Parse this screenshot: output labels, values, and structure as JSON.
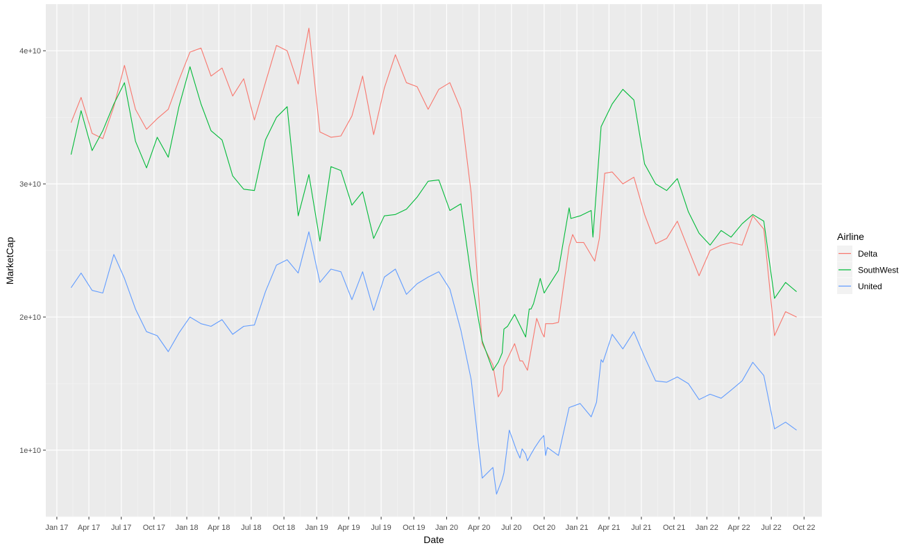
{
  "chart_data": {
    "type": "line",
    "title": "",
    "xlabel": "Date",
    "ylabel": "MarketCap",
    "legend_title": "Airline",
    "legend_position": "right",
    "grid": true,
    "xlim": [
      "2016-12-01",
      "2022-11-20"
    ],
    "ylim": [
      5000000000,
      43500000000
    ],
    "x_ticks": [
      {
        "date": "2017-01-01",
        "label": "Jan 17"
      },
      {
        "date": "2017-04-01",
        "label": "Apr 17"
      },
      {
        "date": "2017-07-01",
        "label": "Jul 17"
      },
      {
        "date": "2017-10-01",
        "label": "Oct 17"
      },
      {
        "date": "2018-01-01",
        "label": "Jan 18"
      },
      {
        "date": "2018-04-01",
        "label": "Apr 18"
      },
      {
        "date": "2018-07-01",
        "label": "Jul 18"
      },
      {
        "date": "2018-10-01",
        "label": "Oct 18"
      },
      {
        "date": "2019-01-01",
        "label": "Jan 19"
      },
      {
        "date": "2019-04-01",
        "label": "Apr 19"
      },
      {
        "date": "2019-07-01",
        "label": "Jul 19"
      },
      {
        "date": "2019-10-01",
        "label": "Oct 19"
      },
      {
        "date": "2020-01-01",
        "label": "Jan 20"
      },
      {
        "date": "2020-04-01",
        "label": "Apr 20"
      },
      {
        "date": "2020-07-01",
        "label": "Jul 20"
      },
      {
        "date": "2020-10-01",
        "label": "Oct 20"
      },
      {
        "date": "2021-01-01",
        "label": "Jan 21"
      },
      {
        "date": "2021-04-01",
        "label": "Apr 21"
      },
      {
        "date": "2021-07-01",
        "label": "Jul 21"
      },
      {
        "date": "2021-10-01",
        "label": "Oct 21"
      },
      {
        "date": "2022-01-01",
        "label": "Jan 22"
      },
      {
        "date": "2022-04-01",
        "label": "Apr 22"
      },
      {
        "date": "2022-07-01",
        "label": "Jul 22"
      },
      {
        "date": "2022-10-01",
        "label": "Oct 22"
      }
    ],
    "y_ticks": [
      {
        "value": 10000000000,
        "label": "1e+10"
      },
      {
        "value": 20000000000,
        "label": "2e+10"
      },
      {
        "value": 30000000000,
        "label": "3e+10"
      },
      {
        "value": 40000000000,
        "label": "4e+10"
      }
    ],
    "series": [
      {
        "name": "Delta",
        "color": "#F8766D",
        "points": [
          [
            "2017-02-10",
            34.6
          ],
          [
            "2017-03-10",
            36.5
          ],
          [
            "2017-04-10",
            33.8
          ],
          [
            "2017-05-10",
            33.4
          ],
          [
            "2017-06-10",
            35.8
          ],
          [
            "2017-07-10",
            38.9
          ],
          [
            "2017-08-10",
            35.6
          ],
          [
            "2017-09-10",
            34.1
          ],
          [
            "2017-10-10",
            34.9
          ],
          [
            "2017-11-10",
            35.6
          ],
          [
            "2017-12-10",
            37.8
          ],
          [
            "2018-01-10",
            39.9
          ],
          [
            "2018-02-10",
            40.2
          ],
          [
            "2018-03-10",
            38.1
          ],
          [
            "2018-04-10",
            38.7
          ],
          [
            "2018-05-10",
            36.6
          ],
          [
            "2018-06-10",
            37.9
          ],
          [
            "2018-07-10",
            34.8
          ],
          [
            "2018-08-10",
            37.6
          ],
          [
            "2018-09-10",
            40.4
          ],
          [
            "2018-10-10",
            40.0
          ],
          [
            "2018-11-10",
            37.5
          ],
          [
            "2018-12-10",
            41.7
          ],
          [
            "2019-01-10",
            33.9
          ],
          [
            "2019-02-10",
            33.5
          ],
          [
            "2019-03-10",
            33.6
          ],
          [
            "2019-04-10",
            35.1
          ],
          [
            "2019-05-10",
            38.1
          ],
          [
            "2019-06-10",
            33.7
          ],
          [
            "2019-07-10",
            37.2
          ],
          [
            "2019-08-10",
            39.7
          ],
          [
            "2019-09-10",
            37.6
          ],
          [
            "2019-10-10",
            37.3
          ],
          [
            "2019-11-10",
            35.6
          ],
          [
            "2019-12-10",
            37.1
          ],
          [
            "2020-01-10",
            37.6
          ],
          [
            "2020-02-10",
            35.6
          ],
          [
            "2020-03-10",
            29.3
          ],
          [
            "2020-04-10",
            18.0
          ],
          [
            "2020-05-10",
            16.4
          ],
          [
            "2020-05-25",
            14.0
          ],
          [
            "2020-06-05",
            14.5
          ],
          [
            "2020-06-10",
            16.3
          ],
          [
            "2020-07-10",
            18.0
          ],
          [
            "2020-07-25",
            16.7
          ],
          [
            "2020-08-01",
            16.7
          ],
          [
            "2020-08-15",
            16.0
          ],
          [
            "2020-09-10",
            19.9
          ],
          [
            "2020-09-25",
            18.8
          ],
          [
            "2020-10-01",
            18.5
          ],
          [
            "2020-10-05",
            19.5
          ],
          [
            "2020-10-25",
            19.5
          ],
          [
            "2020-11-10",
            19.6
          ],
          [
            "2020-12-10",
            25.3
          ],
          [
            "2020-12-20",
            26.2
          ],
          [
            "2020-12-31",
            25.6
          ],
          [
            "2021-01-20",
            25.6
          ],
          [
            "2021-02-20",
            24.2
          ],
          [
            "2021-03-05",
            25.9
          ],
          [
            "2021-03-20",
            30.8
          ],
          [
            "2021-04-10",
            30.9
          ],
          [
            "2021-05-10",
            30.0
          ],
          [
            "2021-06-10",
            30.5
          ],
          [
            "2021-07-10",
            27.7
          ],
          [
            "2021-08-10",
            25.5
          ],
          [
            "2021-09-10",
            25.9
          ],
          [
            "2021-10-10",
            27.2
          ],
          [
            "2021-11-10",
            25.1
          ],
          [
            "2021-12-10",
            23.1
          ],
          [
            "2022-01-10",
            25.0
          ],
          [
            "2022-02-10",
            25.4
          ],
          [
            "2022-03-10",
            25.6
          ],
          [
            "2022-04-10",
            25.4
          ],
          [
            "2022-05-10",
            27.6
          ],
          [
            "2022-06-10",
            26.6
          ],
          [
            "2022-07-10",
            18.6
          ],
          [
            "2022-08-10",
            20.4
          ],
          [
            "2022-09-10",
            20.0
          ]
        ]
      },
      {
        "name": "SouthWest",
        "color": "#00BA38",
        "points": [
          [
            "2017-02-10",
            32.2
          ],
          [
            "2017-03-10",
            35.5
          ],
          [
            "2017-04-10",
            32.5
          ],
          [
            "2017-05-10",
            34.0
          ],
          [
            "2017-06-10",
            36.0
          ],
          [
            "2017-07-10",
            37.6
          ],
          [
            "2017-08-10",
            33.2
          ],
          [
            "2017-09-10",
            31.2
          ],
          [
            "2017-10-10",
            33.5
          ],
          [
            "2017-11-10",
            32.0
          ],
          [
            "2017-12-10",
            35.8
          ],
          [
            "2018-01-10",
            38.8
          ],
          [
            "2018-02-10",
            36.0
          ],
          [
            "2018-03-10",
            34.0
          ],
          [
            "2018-04-10",
            33.3
          ],
          [
            "2018-05-10",
            30.6
          ],
          [
            "2018-06-10",
            29.6
          ],
          [
            "2018-07-10",
            29.5
          ],
          [
            "2018-08-10",
            33.3
          ],
          [
            "2018-09-10",
            35.0
          ],
          [
            "2018-10-10",
            35.8
          ],
          [
            "2018-11-10",
            27.6
          ],
          [
            "2018-12-10",
            30.7
          ],
          [
            "2019-01-10",
            25.7
          ],
          [
            "2019-02-10",
            31.3
          ],
          [
            "2019-03-10",
            31.0
          ],
          [
            "2019-04-10",
            28.4
          ],
          [
            "2019-05-10",
            29.4
          ],
          [
            "2019-06-10",
            25.9
          ],
          [
            "2019-07-10",
            27.6
          ],
          [
            "2019-08-10",
            27.7
          ],
          [
            "2019-09-10",
            28.1
          ],
          [
            "2019-10-10",
            29.0
          ],
          [
            "2019-11-10",
            30.2
          ],
          [
            "2019-12-10",
            30.3
          ],
          [
            "2020-01-10",
            28.0
          ],
          [
            "2020-02-10",
            28.5
          ],
          [
            "2020-03-10",
            23.0
          ],
          [
            "2020-04-10",
            18.2
          ],
          [
            "2020-05-10",
            16.0
          ],
          [
            "2020-05-25",
            16.6
          ],
          [
            "2020-06-05",
            17.3
          ],
          [
            "2020-06-10",
            19.1
          ],
          [
            "2020-06-20",
            19.3
          ],
          [
            "2020-07-10",
            20.2
          ],
          [
            "2020-08-10",
            18.5
          ],
          [
            "2020-08-20",
            20.6
          ],
          [
            "2020-08-25",
            20.6
          ],
          [
            "2020-09-01",
            21.0
          ],
          [
            "2020-09-20",
            22.9
          ],
          [
            "2020-10-01",
            21.8
          ],
          [
            "2020-10-10",
            22.2
          ],
          [
            "2020-11-10",
            23.5
          ],
          [
            "2020-12-10",
            28.2
          ],
          [
            "2020-12-15",
            27.4
          ],
          [
            "2021-01-10",
            27.6
          ],
          [
            "2021-02-10",
            28.0
          ],
          [
            "2021-02-15",
            26.0
          ],
          [
            "2021-03-10",
            34.3
          ],
          [
            "2021-04-10",
            36.0
          ],
          [
            "2021-05-10",
            37.1
          ],
          [
            "2021-06-10",
            36.3
          ],
          [
            "2021-07-10",
            31.5
          ],
          [
            "2021-08-10",
            30.0
          ],
          [
            "2021-09-10",
            29.5
          ],
          [
            "2021-10-10",
            30.4
          ],
          [
            "2021-11-10",
            27.9
          ],
          [
            "2021-12-10",
            26.3
          ],
          [
            "2022-01-10",
            25.4
          ],
          [
            "2022-02-10",
            26.5
          ],
          [
            "2022-03-10",
            26.0
          ],
          [
            "2022-04-10",
            27.0
          ],
          [
            "2022-05-10",
            27.7
          ],
          [
            "2022-06-10",
            27.2
          ],
          [
            "2022-07-10",
            21.4
          ],
          [
            "2022-08-10",
            22.6
          ],
          [
            "2022-09-10",
            21.9
          ]
        ]
      },
      {
        "name": "United",
        "color": "#619CFF",
        "points": [
          [
            "2017-02-10",
            22.2
          ],
          [
            "2017-03-10",
            23.3
          ],
          [
            "2017-04-10",
            22.0
          ],
          [
            "2017-05-10",
            21.8
          ],
          [
            "2017-06-10",
            24.7
          ],
          [
            "2017-07-10",
            22.9
          ],
          [
            "2017-08-10",
            20.6
          ],
          [
            "2017-09-10",
            18.9
          ],
          [
            "2017-10-10",
            18.6
          ],
          [
            "2017-11-10",
            17.4
          ],
          [
            "2017-12-10",
            18.8
          ],
          [
            "2018-01-10",
            20.0
          ],
          [
            "2018-02-10",
            19.5
          ],
          [
            "2018-03-10",
            19.3
          ],
          [
            "2018-04-10",
            19.8
          ],
          [
            "2018-05-10",
            18.7
          ],
          [
            "2018-06-10",
            19.3
          ],
          [
            "2018-07-10",
            19.4
          ],
          [
            "2018-08-10",
            21.9
          ],
          [
            "2018-09-10",
            23.9
          ],
          [
            "2018-10-10",
            24.3
          ],
          [
            "2018-11-10",
            23.3
          ],
          [
            "2018-12-10",
            26.4
          ],
          [
            "2019-01-10",
            22.6
          ],
          [
            "2019-02-10",
            23.6
          ],
          [
            "2019-03-10",
            23.4
          ],
          [
            "2019-04-10",
            21.3
          ],
          [
            "2019-05-10",
            23.4
          ],
          [
            "2019-06-10",
            20.5
          ],
          [
            "2019-07-10",
            23.0
          ],
          [
            "2019-08-10",
            23.6
          ],
          [
            "2019-09-10",
            21.7
          ],
          [
            "2019-10-10",
            22.5
          ],
          [
            "2019-11-10",
            23.0
          ],
          [
            "2019-12-10",
            23.4
          ],
          [
            "2020-01-10",
            22.1
          ],
          [
            "2020-02-10",
            19.0
          ],
          [
            "2020-03-10",
            15.3
          ],
          [
            "2020-04-10",
            7.9
          ],
          [
            "2020-05-10",
            8.7
          ],
          [
            "2020-05-20",
            6.7
          ],
          [
            "2020-06-05",
            7.8
          ],
          [
            "2020-06-10",
            8.3
          ],
          [
            "2020-06-25",
            11.5
          ],
          [
            "2020-07-15",
            10.0
          ],
          [
            "2020-07-25",
            9.4
          ],
          [
            "2020-07-31",
            10.1
          ],
          [
            "2020-08-10",
            9.7
          ],
          [
            "2020-08-15",
            9.2
          ],
          [
            "2020-08-25",
            9.7
          ],
          [
            "2020-09-05",
            10.2
          ],
          [
            "2020-09-20",
            10.8
          ],
          [
            "2020-09-30",
            11.1
          ],
          [
            "2020-10-05",
            9.6
          ],
          [
            "2020-10-10",
            10.2
          ],
          [
            "2020-11-10",
            9.6
          ],
          [
            "2020-12-10",
            13.2
          ],
          [
            "2021-01-10",
            13.5
          ],
          [
            "2021-02-10",
            12.5
          ],
          [
            "2021-02-25",
            13.6
          ],
          [
            "2021-03-10",
            16.8
          ],
          [
            "2021-03-15",
            16.6
          ],
          [
            "2021-04-10",
            18.7
          ],
          [
            "2021-05-10",
            17.6
          ],
          [
            "2021-06-10",
            18.9
          ],
          [
            "2021-07-10",
            17.0
          ],
          [
            "2021-08-10",
            15.2
          ],
          [
            "2021-09-10",
            15.1
          ],
          [
            "2021-10-10",
            15.5
          ],
          [
            "2021-11-10",
            15.0
          ],
          [
            "2021-12-10",
            13.8
          ],
          [
            "2022-01-10",
            14.2
          ],
          [
            "2022-02-10",
            13.9
          ],
          [
            "2022-03-10",
            14.5
          ],
          [
            "2022-04-10",
            15.2
          ],
          [
            "2022-05-10",
            16.6
          ],
          [
            "2022-06-10",
            15.6
          ],
          [
            "2022-07-10",
            11.6
          ],
          [
            "2022-08-10",
            12.1
          ],
          [
            "2022-09-10",
            11.5
          ]
        ]
      }
    ]
  }
}
